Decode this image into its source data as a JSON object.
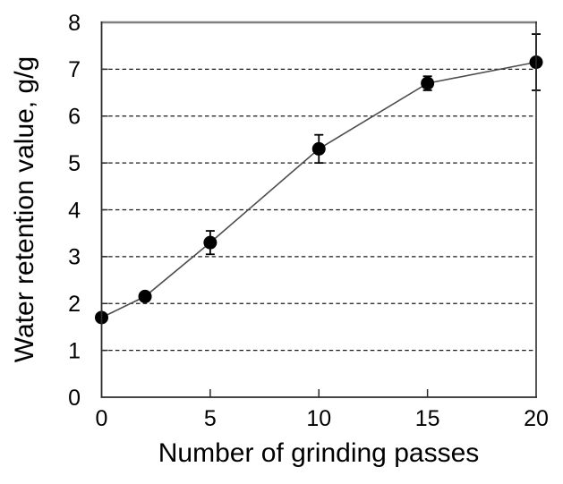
{
  "figure": {
    "xlabel": "Number of grinding passes",
    "ylabel": "Water retention value, g/g"
  },
  "chart_data": {
    "type": "line",
    "title": "",
    "xlabel": "Number of grinding passes",
    "ylabel": "Water retention value, g/g",
    "series": [
      {
        "name": "Water retention value",
        "x": [
          0,
          2,
          5,
          10,
          15,
          20
        ],
        "y": [
          1.7,
          2.15,
          3.3,
          5.3,
          6.7,
          7.15
        ],
        "yerr": [
          0,
          0,
          0.25,
          0.3,
          0.15,
          0.6
        ]
      }
    ],
    "xlim": [
      0,
      20
    ],
    "ylim": [
      0,
      8
    ],
    "xticks": [
      0,
      5,
      10,
      15,
      20
    ],
    "yticks": [
      0,
      1,
      2,
      3,
      4,
      5,
      6,
      7,
      8
    ],
    "grid": "horizontal dashed gridlines at y=1 through y=7",
    "legend": "none",
    "marker": "filled black circle with error bars",
    "colors": {
      "marker": "#000000",
      "line": "#4d4d4d",
      "grid": "#1a1a1a",
      "frame_top": "#808080",
      "axis": "#2b2b2b",
      "text": "#000000",
      "background": "#ffffff"
    }
  }
}
